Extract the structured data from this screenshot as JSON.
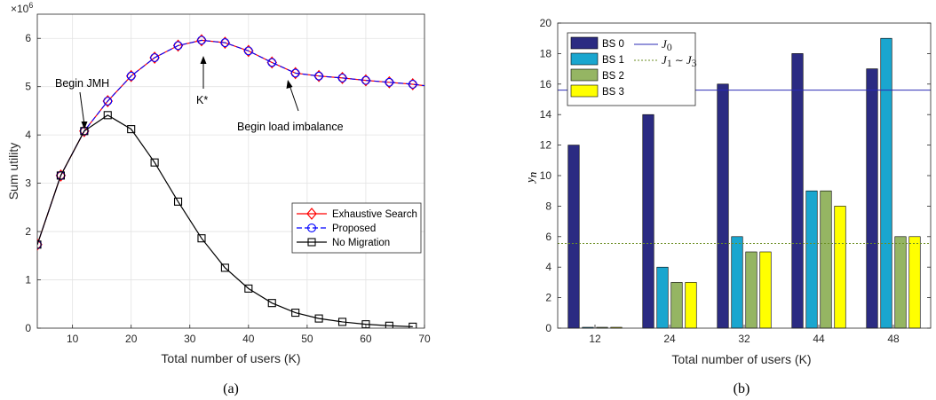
{
  "chart_data": [
    {
      "type": "line",
      "xlabel": "Total number of users (K)",
      "ylabel": "Sum utility",
      "y_exponent_label": "×10",
      "y_exponent_power": "6",
      "xlim": [
        4,
        70
      ],
      "ylim": [
        0,
        6.5
      ],
      "y_scale": 1000000,
      "xticks": [
        10,
        20,
        30,
        40,
        50,
        60,
        70
      ],
      "yticks": [
        0,
        1,
        2,
        3,
        4,
        5,
        6
      ],
      "grid": true,
      "legend_position": "lower-right",
      "series": [
        {
          "name": "Exhaustive Search",
          "color": "#ff0000",
          "marker": "diamond",
          "line": "solid",
          "x": [
            4,
            8,
            12,
            16,
            20,
            24,
            28,
            32,
            36,
            40,
            44,
            48,
            52,
            56,
            60,
            64,
            68,
            70
          ],
          "y": [
            1.73,
            3.16,
            4.08,
            4.7,
            5.22,
            5.6,
            5.85,
            5.96,
            5.91,
            5.74,
            5.5,
            5.28,
            5.22,
            5.18,
            5.13,
            5.09,
            5.05,
            5.02
          ]
        },
        {
          "name": "Proposed",
          "color": "#0000ff",
          "marker": "circle",
          "line": "dashed",
          "x": [
            4,
            8,
            12,
            16,
            20,
            24,
            28,
            32,
            36,
            40,
            44,
            48,
            52,
            56,
            60,
            64,
            68,
            70
          ],
          "y": [
            1.73,
            3.16,
            4.08,
            4.7,
            5.22,
            5.6,
            5.85,
            5.96,
            5.91,
            5.74,
            5.5,
            5.28,
            5.22,
            5.18,
            5.13,
            5.09,
            5.05,
            5.02
          ]
        },
        {
          "name": "No Migration",
          "color": "#000000",
          "marker": "square",
          "line": "solid",
          "x": [
            4,
            8,
            12,
            16,
            20,
            24,
            28,
            32,
            36,
            40,
            44,
            48,
            52,
            56,
            60,
            64,
            68
          ],
          "y": [
            1.73,
            3.16,
            4.08,
            4.41,
            4.12,
            3.43,
            2.62,
            1.86,
            1.25,
            0.82,
            0.52,
            0.32,
            0.2,
            0.13,
            0.08,
            0.05,
            0.03
          ]
        }
      ],
      "annotations": [
        {
          "text": "Begin JMH",
          "at": [
            12,
            4.08
          ]
        },
        {
          "text": "K*",
          "at": [
            32,
            5.96
          ]
        },
        {
          "text": "Begin load imbalance",
          "at": [
            48,
            5.28
          ]
        }
      ],
      "caption": "(a)"
    },
    {
      "type": "bar",
      "xlabel": "Total number of users (K)",
      "ylabel_main": "y",
      "ylabel_sub": "n",
      "categories": [
        "12",
        "24",
        "32",
        "44",
        "48"
      ],
      "ylim": [
        0,
        20
      ],
      "yticks": [
        0,
        2,
        4,
        6,
        8,
        10,
        12,
        14,
        16,
        18,
        20
      ],
      "legend_position": "top-left",
      "series": [
        {
          "name": "BS 0",
          "color": "#2b2b82",
          "values": [
            12,
            14,
            16,
            18,
            17
          ]
        },
        {
          "name": "BS 1",
          "color": "#1aa6cf",
          "values": [
            0,
            4,
            6,
            9,
            19
          ]
        },
        {
          "name": "BS 2",
          "color": "#95b563",
          "values": [
            0,
            3,
            5,
            9,
            6
          ]
        },
        {
          "name": "BS 3",
          "color": "#ffff00",
          "values": [
            0,
            3,
            5,
            8,
            6
          ]
        }
      ],
      "reference_lines": [
        {
          "label_main": "J",
          "label_sub": "0",
          "value": 15.6,
          "color": "#2b2bb5",
          "style": "solid"
        },
        {
          "label_main": "J",
          "label_sub1": "1",
          "label_mid": " ∼ ",
          "label_main2": "J",
          "label_sub2": "3",
          "value": 5.55,
          "color": "#6b8e23",
          "style": "dotted"
        }
      ],
      "caption": "(b)"
    }
  ]
}
